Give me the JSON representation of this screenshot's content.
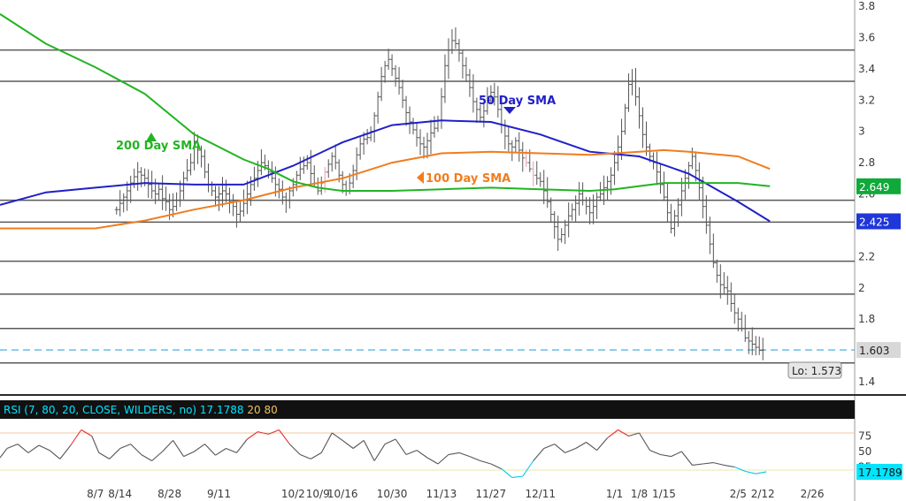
{
  "chart_data": [
    {
      "type": "line",
      "subtype": "ohlc-bars-with-moving-averages",
      "title": "",
      "ylim": [
        1.3,
        3.85
      ],
      "y_ticks": [
        "3.8",
        "3.6",
        "3.4",
        "3.2",
        "3",
        "2.8",
        "2.6",
        "2.4",
        "2.2",
        "2",
        "1.8",
        "1.6",
        "1.4"
      ],
      "x_ticks": [
        "8/7",
        "8/14",
        "8/28",
        "9/11",
        "10/2",
        "10/9",
        "10/16",
        "10/30",
        "11/13",
        "11/27",
        "12/11",
        "1/1",
        "1/8",
        "1/15",
        "2/5",
        "2/12",
        "2/26"
      ],
      "x_tick_positions": [
        0.0,
        7,
        21,
        35,
        56,
        63,
        70,
        84,
        98,
        112,
        126,
        147,
        154,
        161,
        182,
        189,
        203
      ],
      "x_start_offset": -27,
      "x_end_offset": 215,
      "last_bar_offset": 189,
      "price": [
        2.5,
        2.54,
        2.58,
        2.62,
        2.67,
        2.71,
        2.74,
        2.72,
        2.7,
        2.66,
        2.62,
        2.6,
        2.63,
        2.57,
        2.55,
        2.5,
        2.52,
        2.56,
        2.62,
        2.7,
        2.75,
        2.8,
        2.93,
        2.88,
        2.84,
        2.74,
        2.66,
        2.62,
        2.58,
        2.6,
        2.62,
        2.6,
        2.55,
        2.52,
        2.47,
        2.49,
        2.54,
        2.6,
        2.66,
        2.7,
        2.75,
        2.8,
        2.78,
        2.74,
        2.7,
        2.66,
        2.63,
        2.58,
        2.56,
        2.62,
        2.66,
        2.72,
        2.76,
        2.78,
        2.8,
        2.73,
        2.67,
        2.62,
        2.67,
        2.74,
        2.79,
        2.84,
        2.8,
        2.72,
        2.66,
        2.62,
        2.67,
        2.75,
        2.85,
        2.92,
        2.95,
        2.96,
        3.0,
        3.1,
        3.22,
        3.35,
        3.42,
        3.46,
        3.4,
        3.34,
        3.28,
        3.2,
        3.12,
        3.06,
        3.01,
        2.96,
        2.92,
        2.9,
        2.94,
        2.99,
        3.02,
        3.07,
        3.22,
        3.42,
        3.52,
        3.58,
        3.56,
        3.5,
        3.42,
        3.36,
        3.28,
        3.19,
        3.14,
        3.09,
        3.13,
        3.2,
        3.25,
        3.22,
        3.14,
        3.04,
        2.97,
        2.92,
        2.9,
        2.94,
        2.88,
        2.83,
        2.8,
        2.76,
        2.72,
        2.7,
        2.68,
        2.62,
        2.55,
        2.47,
        2.39,
        2.31,
        2.34,
        2.4,
        2.46,
        2.5,
        2.54,
        2.6,
        2.56,
        2.52,
        2.48,
        2.52,
        2.58,
        2.6,
        2.64,
        2.68,
        2.72,
        2.8,
        2.9,
        3.0,
        3.15,
        3.3,
        3.32,
        3.22,
        3.1,
        2.98,
        2.9,
        2.84,
        2.8,
        2.74,
        2.66,
        2.58,
        2.48,
        2.38,
        2.46,
        2.53,
        2.62,
        2.7,
        2.78,
        2.84,
        2.75,
        2.64,
        2.52,
        2.4,
        2.28,
        2.16,
        2.08,
        2.02,
        2.0,
        1.98,
        1.9,
        1.84,
        1.8,
        1.74,
        1.68,
        1.66,
        1.64,
        1.62,
        1.6,
        1.603
      ],
      "series": [
        {
          "name": "50 Day SMA",
          "color": "#2020c8",
          "x": [
            -27,
            -14,
            0,
            14,
            28,
            42,
            49,
            56,
            70,
            84,
            98,
            112,
            126,
            140,
            154,
            168,
            182,
            191
          ],
          "y": [
            2.53,
            2.61,
            2.64,
            2.67,
            2.66,
            2.66,
            2.72,
            2.78,
            2.93,
            3.04,
            3.07,
            3.06,
            2.98,
            2.87,
            2.84,
            2.73,
            2.55,
            2.425
          ]
        },
        {
          "name": "100 Day SMA",
          "color": "#f07d1e",
          "x": [
            -27,
            0,
            14,
            28,
            42,
            56,
            70,
            84,
            98,
            112,
            126,
            140,
            154,
            161,
            168,
            182,
            191
          ],
          "y": [
            2.38,
            2.38,
            2.43,
            2.5,
            2.56,
            2.64,
            2.7,
            2.8,
            2.86,
            2.87,
            2.86,
            2.85,
            2.87,
            2.88,
            2.87,
            2.84,
            2.76
          ]
        },
        {
          "name": "200 Day SMA",
          "color": "#22b422",
          "x": [
            -27,
            -14,
            0,
            14,
            28,
            42,
            49,
            56,
            63,
            70,
            84,
            98,
            112,
            126,
            140,
            147,
            154,
            161,
            168,
            182,
            191
          ],
          "y": [
            3.75,
            3.56,
            3.41,
            3.24,
            2.98,
            2.82,
            2.76,
            2.68,
            2.64,
            2.62,
            2.62,
            2.63,
            2.64,
            2.63,
            2.62,
            2.63,
            2.65,
            2.67,
            2.67,
            2.67,
            2.649
          ]
        }
      ],
      "hlines": [
        3.52,
        3.32,
        2.56,
        2.42,
        2.17,
        1.96,
        1.74,
        1.52
      ],
      "dashed_hline": 1.603,
      "annotations": {
        "sma200_label": "200 Day SMA",
        "sma50_label": "50 Day SMA",
        "sma100_label": "100 Day SMA",
        "low_label": "Lo: 1.573"
      },
      "badges": {
        "sma200_value": "2.649",
        "sma50_value": "2.425",
        "last_price": "1.603"
      },
      "colors": {
        "sma200": "#22b422",
        "sma50": "#2020c8",
        "sma100": "#f07d1e",
        "badge_green": "#0faa3a",
        "badge_blue": "#1f36d8",
        "last_price_badge": "#d8d8d8",
        "dashed_line": "#5bb6e6",
        "cyan": "#00e5ff"
      }
    },
    {
      "type": "line",
      "title": "RSI (7, 80, 20, CLOSE, WILDERS, no)",
      "header_value": "17.1788",
      "header_oversold": "20",
      "header_overbought": "80",
      "ylim": [
        0,
        100
      ],
      "y_ticks": [
        "75",
        "50",
        "25"
      ],
      "overbought": 80,
      "oversold": 20,
      "badge_value": "17.1789",
      "x": [
        -27,
        -25,
        -22,
        -19,
        -16,
        -13,
        -10,
        -7,
        -4,
        -1,
        1,
        4,
        7,
        10,
        13,
        16,
        19,
        22,
        25,
        28,
        31,
        34,
        37,
        40,
        43,
        46,
        49,
        52,
        55,
        58,
        61,
        64,
        67,
        70,
        73,
        76,
        79,
        82,
        85,
        88,
        91,
        94,
        97,
        100,
        103,
        106,
        109,
        112,
        115,
        118,
        121,
        124,
        127,
        130,
        133,
        136,
        139,
        142,
        145,
        148,
        151,
        154,
        157,
        160,
        163,
        166,
        169,
        172,
        175,
        178,
        181,
        184,
        187,
        190
      ],
      "y": [
        40,
        55,
        62,
        48,
        60,
        52,
        38,
        60,
        85,
        75,
        48,
        38,
        55,
        62,
        45,
        35,
        50,
        68,
        42,
        50,
        62,
        44,
        55,
        48,
        70,
        82,
        78,
        85,
        62,
        45,
        38,
        48,
        80,
        68,
        55,
        68,
        35,
        62,
        70,
        45,
        52,
        40,
        30,
        45,
        48,
        42,
        35,
        30,
        22,
        8,
        10,
        35,
        55,
        62,
        48,
        55,
        65,
        52,
        72,
        85,
        75,
        80,
        52,
        45,
        42,
        50,
        28,
        30,
        32,
        28,
        25,
        18,
        14,
        17.18
      ]
    }
  ]
}
